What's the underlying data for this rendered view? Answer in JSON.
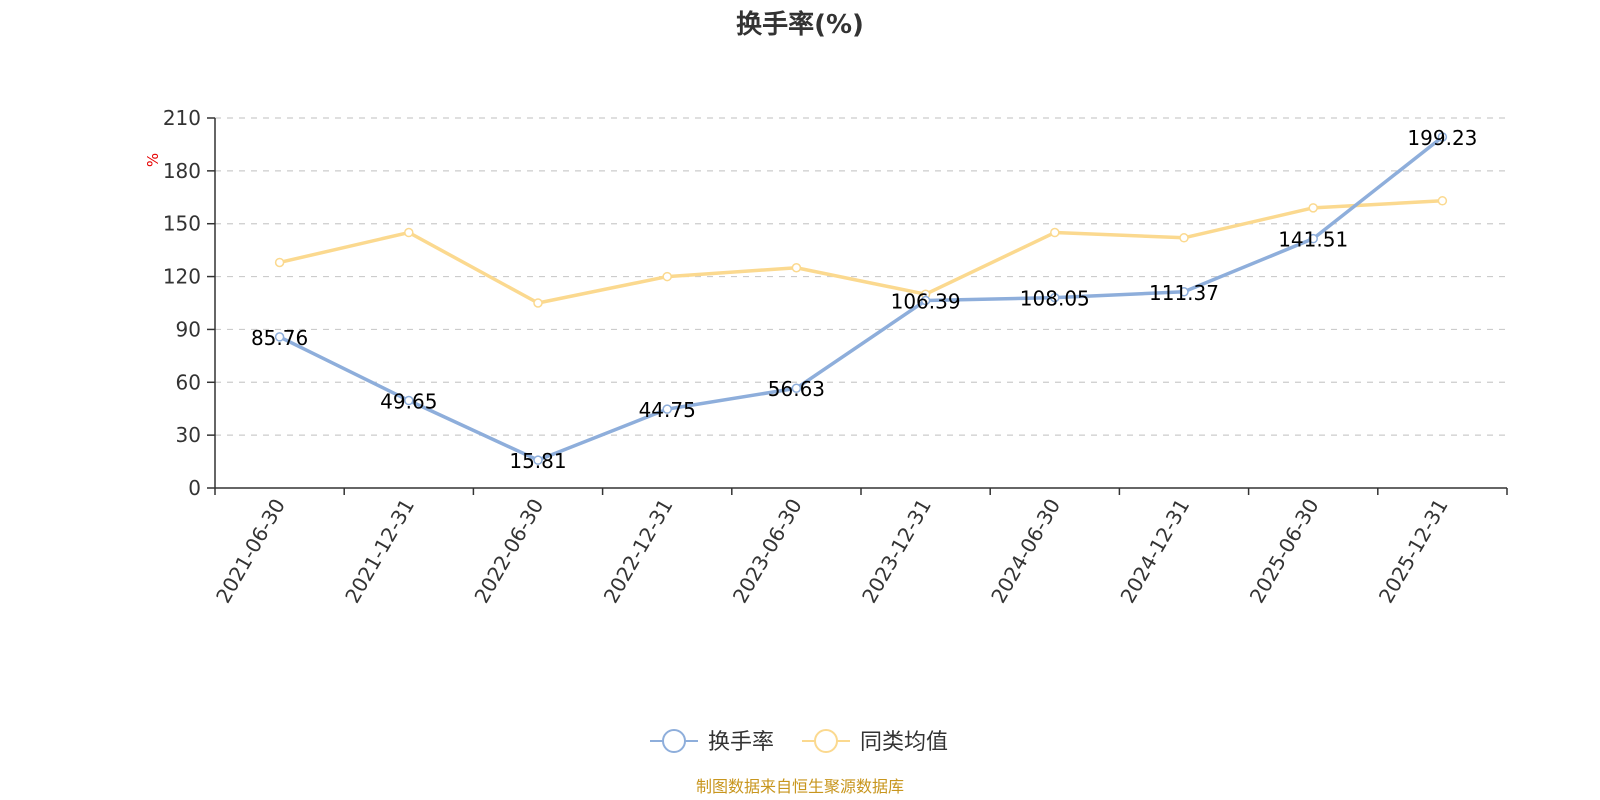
{
  "chart_data": {
    "type": "line",
    "title": "换手率(%)",
    "ylabel": "%",
    "xlabel": "",
    "categories": [
      "2021-06-30",
      "2021-12-31",
      "2022-06-30",
      "2022-12-31",
      "2023-06-30",
      "2023-12-31",
      "2024-06-30",
      "2024-12-31",
      "2025-06-30",
      "2025-12-31"
    ],
    "ylim": [
      0,
      210
    ],
    "yticks": [
      0,
      30,
      60,
      90,
      120,
      150,
      180,
      210
    ],
    "grid": true,
    "legend_position": "bottom",
    "series": [
      {
        "name": "换手率",
        "color": "#8eaedb",
        "values": [
          85.76,
          49.65,
          15.81,
          44.75,
          56.63,
          106.39,
          108.05,
          111.37,
          141.51,
          199.23
        ],
        "labels": [
          "85.76",
          "49.65",
          "15.81",
          "44.75",
          "56.63",
          "106.39",
          "108.05",
          "111.37",
          "141.51",
          "199.23"
        ]
      },
      {
        "name": "同类均值",
        "color": "#fbd98f",
        "values": [
          128,
          145,
          105,
          120,
          125,
          110,
          145,
          142,
          159,
          163
        ]
      }
    ],
    "unit_color": "#e60000",
    "source": "制图数据来自恒生聚源数据库",
    "source_color": "#c8961e"
  }
}
